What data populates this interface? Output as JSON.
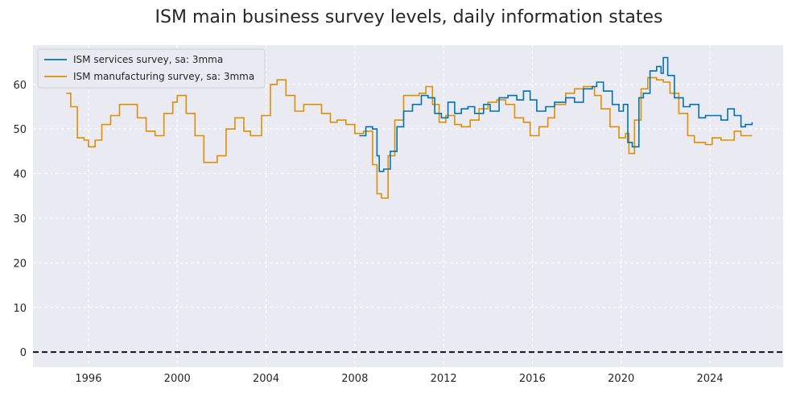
{
  "chart_data": {
    "type": "line",
    "title": "ISM main business survey levels, daily information states",
    "xlabel": "",
    "ylabel": "",
    "xlim": [
      1993.5,
      2027.3
    ],
    "ylim": [
      -3.4,
      68.8
    ],
    "x_ticks": [
      1996,
      2000,
      2004,
      2008,
      2012,
      2016,
      2020,
      2024
    ],
    "x_tick_labels": [
      "1996",
      "2000",
      "2004",
      "2008",
      "2012",
      "2016",
      "2020",
      "2024"
    ],
    "y_ticks": [
      0,
      10,
      20,
      30,
      40,
      50,
      60
    ],
    "y_tick_labels": [
      "0",
      "10",
      "20",
      "30",
      "40",
      "50",
      "60"
    ],
    "grid": true,
    "legend_position": "top-left",
    "reference_line": {
      "y": 0,
      "style": "dashed",
      "color": "#000000"
    },
    "colors": {
      "background": "#eaeaf2",
      "grid": "#ffffff",
      "services": "#0173b2",
      "manufacturing": "#de8f05"
    },
    "series": [
      {
        "name": "ISM services survey, sa: 3mma",
        "color": "#0173b2",
        "x": [
          2008.2,
          2008.5,
          2008.8,
          2009.0,
          2009.1,
          2009.3,
          2009.6,
          2009.9,
          2010.2,
          2010.6,
          2011.0,
          2011.3,
          2011.6,
          2011.9,
          2012.2,
          2012.5,
          2012.8,
          2013.1,
          2013.4,
          2013.8,
          2014.1,
          2014.5,
          2014.9,
          2015.3,
          2015.6,
          2015.9,
          2016.2,
          2016.6,
          2017.0,
          2017.5,
          2017.9,
          2018.3,
          2018.7,
          2018.9,
          2019.2,
          2019.6,
          2019.9,
          2020.1,
          2020.3,
          2020.5,
          2020.8,
          2021.0,
          2021.3,
          2021.6,
          2021.8,
          2021.9,
          2022.1,
          2022.4,
          2022.8,
          2023.1,
          2023.5,
          2023.8,
          2024.1,
          2024.5,
          2024.8,
          2025.1,
          2025.4,
          2025.6,
          2025.9
        ],
        "values": [
          48.5,
          50.5,
          50.0,
          44.0,
          40.5,
          41.0,
          45.0,
          50.5,
          54.0,
          55.5,
          57.5,
          57.0,
          53.5,
          52.5,
          56.0,
          53.5,
          54.5,
          55.0,
          53.5,
          55.5,
          54.0,
          57.0,
          57.5,
          56.5,
          58.5,
          56.5,
          54.0,
          55.0,
          56.0,
          57.0,
          56.0,
          59.0,
          59.5,
          60.5,
          58.5,
          55.5,
          54.0,
          55.5,
          47.0,
          46.0,
          57.0,
          58.0,
          63.0,
          64.0,
          62.5,
          66.0,
          62.0,
          57.0,
          55.0,
          55.5,
          52.5,
          53.0,
          53.0,
          52.0,
          54.5,
          53.0,
          50.5,
          51.0,
          51.5
        ]
      },
      {
        "name": "ISM manufacturing survey, sa: 3mma",
        "color": "#de8f05",
        "x": [
          1995.0,
          1995.2,
          1995.5,
          1995.8,
          1996.0,
          1996.3,
          1996.6,
          1997.0,
          1997.4,
          1997.8,
          1998.2,
          1998.6,
          1999.0,
          1999.4,
          1999.8,
          2000.0,
          2000.4,
          2000.8,
          2001.2,
          2001.5,
          2001.8,
          2002.2,
          2002.6,
          2003.0,
          2003.3,
          2003.8,
          2004.2,
          2004.5,
          2004.9,
          2005.3,
          2005.7,
          2006.1,
          2006.5,
          2006.9,
          2007.2,
          2007.6,
          2008.0,
          2008.4,
          2008.8,
          2009.0,
          2009.2,
          2009.5,
          2009.8,
          2010.2,
          2010.5,
          2010.9,
          2011.2,
          2011.5,
          2011.8,
          2012.1,
          2012.5,
          2012.8,
          2013.2,
          2013.6,
          2014.0,
          2014.4,
          2014.8,
          2015.2,
          2015.6,
          2015.9,
          2016.3,
          2016.7,
          2017.0,
          2017.5,
          2017.9,
          2018.3,
          2018.8,
          2019.1,
          2019.5,
          2019.9,
          2020.2,
          2020.35,
          2020.6,
          2020.9,
          2021.2,
          2021.6,
          2021.9,
          2022.2,
          2022.6,
          2023.0,
          2023.3,
          2023.8,
          2024.1,
          2024.5,
          2024.8,
          2025.1,
          2025.4,
          2025.7,
          2025.9
        ],
        "values": [
          58.0,
          55.0,
          48.0,
          47.5,
          46.0,
          47.5,
          51.0,
          53.0,
          55.5,
          55.5,
          52.5,
          49.5,
          48.5,
          53.5,
          56.0,
          57.5,
          53.5,
          48.5,
          42.5,
          42.5,
          44.0,
          50.0,
          52.5,
          49.5,
          48.5,
          53.0,
          60.0,
          61.0,
          57.5,
          54.0,
          55.5,
          55.5,
          53.5,
          51.5,
          52.0,
          51.0,
          49.0,
          49.5,
          42.0,
          35.5,
          34.5,
          44.0,
          52.0,
          57.5,
          57.5,
          58.0,
          59.5,
          55.5,
          51.5,
          53.0,
          51.0,
          50.5,
          52.0,
          54.5,
          56.0,
          56.5,
          55.5,
          52.5,
          51.5,
          48.5,
          50.5,
          52.5,
          55.5,
          58.0,
          59.0,
          59.5,
          57.5,
          54.5,
          50.5,
          48.0,
          49.0,
          44.5,
          52.0,
          59.0,
          61.5,
          61.0,
          60.5,
          58.0,
          53.5,
          48.5,
          47.0,
          46.5,
          48.0,
          47.5,
          47.5,
          49.5,
          48.5,
          48.5,
          48.5
        ]
      }
    ]
  }
}
